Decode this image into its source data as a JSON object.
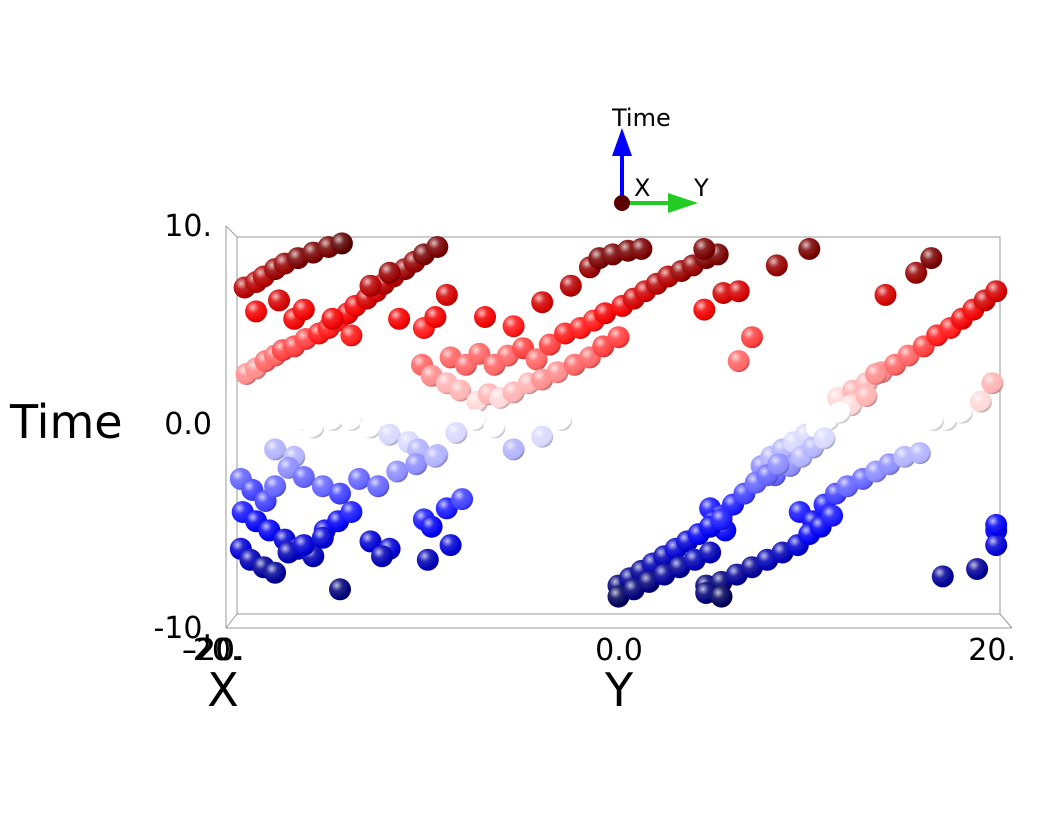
{
  "chart_data": {
    "type": "scatter",
    "title": "",
    "xlabel": "X",
    "ylabel": "Y",
    "zlabel": "Time",
    "x_ticks": [
      "-20.",
      "20."
    ],
    "y_ticks": [
      "-20.",
      "0.0",
      "20."
    ],
    "z_ticks": [
      "-10.",
      "0.0",
      "10."
    ],
    "ylim": [
      -20,
      20
    ],
    "zlim": [
      -10,
      10
    ],
    "color_scale": {
      "low": "#00005a",
      "mid": "#ffffff",
      "high": "#5a0000"
    },
    "orientation": {
      "vertical": "Time",
      "horizontal": "Y",
      "depth": "X"
    },
    "series": [
      {
        "points": [
          [
            -19.6,
            7.2
          ],
          [
            -19.0,
            7.5
          ],
          [
            -18.6,
            7.8
          ],
          [
            -18.0,
            8.2
          ],
          [
            -17.5,
            8.5
          ],
          [
            -16.8,
            8.8
          ],
          [
            -16.0,
            9.1
          ],
          [
            -15.2,
            9.4
          ],
          [
            -14.5,
            9.6
          ],
          [
            -19.5,
            2.5
          ],
          [
            -19.0,
            2.8
          ],
          [
            -18.5,
            3.2
          ],
          [
            -18.0,
            3.5
          ],
          [
            -17.6,
            3.8
          ],
          [
            -17.0,
            4.0
          ],
          [
            -16.4,
            4.4
          ],
          [
            -15.7,
            4.7
          ],
          [
            -15.2,
            5.0
          ],
          [
            -14.7,
            5.4
          ],
          [
            -14.2,
            5.8
          ],
          [
            -13.8,
            6.2
          ],
          [
            -13.2,
            6.6
          ],
          [
            -12.7,
            7.0
          ],
          [
            -12.3,
            7.4
          ],
          [
            -11.8,
            7.8
          ],
          [
            -11.2,
            8.2
          ],
          [
            -10.7,
            8.6
          ],
          [
            -10.2,
            9.0
          ],
          [
            -9.5,
            9.4
          ],
          [
            -19.0,
            5.9
          ],
          [
            -17.8,
            6.5
          ],
          [
            -17.0,
            5.5
          ],
          [
            -16.5,
            6.0
          ],
          [
            -15.0,
            5.5
          ],
          [
            -14.0,
            4.6
          ],
          [
            -13.0,
            7.3
          ],
          [
            -12.0,
            8.0
          ],
          [
            -11.5,
            5.5
          ],
          [
            -9.0,
            6.8
          ],
          [
            -7.0,
            5.6
          ],
          [
            -5.5,
            5.1
          ],
          [
            -4.0,
            6.4
          ],
          [
            -2.5,
            7.3
          ],
          [
            -1.5,
            8.3
          ],
          [
            -10.2,
            5.0
          ],
          [
            -9.6,
            5.6
          ],
          [
            -8.8,
            3.4
          ],
          [
            -8.0,
            3.0
          ],
          [
            -7.3,
            3.6
          ],
          [
            -6.5,
            3.0
          ],
          [
            -5.8,
            3.5
          ],
          [
            -5.0,
            3.9
          ],
          [
            -4.3,
            3.3
          ],
          [
            -3.6,
            4.1
          ],
          [
            -2.8,
            4.7
          ],
          [
            -2.0,
            5.0
          ],
          [
            -1.3,
            5.4
          ],
          [
            -0.7,
            5.8
          ],
          [
            0.2,
            6.2
          ],
          [
            0.8,
            6.6
          ],
          [
            1.4,
            7.0
          ],
          [
            2.0,
            7.4
          ],
          [
            2.6,
            7.8
          ],
          [
            3.3,
            8.1
          ],
          [
            3.9,
            8.4
          ],
          [
            4.6,
            8.8
          ],
          [
            5.2,
            9.0
          ],
          [
            -10.3,
            3.0
          ],
          [
            -9.8,
            2.4
          ],
          [
            -9.0,
            2.0
          ],
          [
            -8.3,
            1.6
          ],
          [
            -7.4,
            1.0
          ],
          [
            -6.8,
            1.4
          ],
          [
            -6.2,
            1.2
          ],
          [
            -5.5,
            1.5
          ],
          [
            -4.7,
            2.0
          ],
          [
            -4.0,
            2.2
          ],
          [
            -3.2,
            2.6
          ],
          [
            -2.3,
            3.0
          ],
          [
            -1.5,
            3.4
          ],
          [
            -0.8,
            4.0
          ],
          [
            0.0,
            4.5
          ],
          [
            -1.0,
            8.8
          ],
          [
            -0.3,
            9.0
          ],
          [
            0.5,
            9.2
          ],
          [
            1.2,
            9.3
          ],
          [
            4.5,
            9.3
          ],
          [
            4.5,
            6.0
          ],
          [
            5.5,
            6.9
          ],
          [
            6.3,
            7.0
          ],
          [
            6.3,
            3.2
          ],
          [
            7.0,
            4.5
          ],
          [
            8.3,
            8.4
          ],
          [
            10.0,
            9.3
          ],
          [
            -18.0,
            -1.6
          ],
          [
            -17.0,
            -2.0
          ],
          [
            -16.5,
            0.0
          ],
          [
            -16.0,
            -0.4
          ],
          [
            -15.0,
            0.0
          ],
          [
            -14.0,
            0.0
          ],
          [
            -13.0,
            -0.4
          ],
          [
            -12.0,
            -0.8
          ],
          [
            -11.0,
            -1.2
          ],
          [
            -10.5,
            -1.6
          ],
          [
            -9.5,
            -1.9
          ],
          [
            -8.5,
            -0.7
          ],
          [
            -7.5,
            0.0
          ],
          [
            -6.5,
            -0.4
          ],
          [
            -5.5,
            -1.6
          ],
          [
            -4.0,
            -0.9
          ],
          [
            -3.0,
            0.0
          ],
          [
            -19.8,
            -3.2
          ],
          [
            -19.2,
            -3.8
          ],
          [
            -18.5,
            -4.4
          ],
          [
            -18.0,
            -3.6
          ],
          [
            -17.3,
            -2.6
          ],
          [
            -16.5,
            -3.1
          ],
          [
            -15.5,
            -3.6
          ],
          [
            -14.6,
            -4.0
          ],
          [
            -13.6,
            -3.2
          ],
          [
            -12.6,
            -3.6
          ],
          [
            -11.6,
            -2.8
          ],
          [
            -10.6,
            -2.4
          ],
          [
            -9.6,
            -2.0
          ],
          [
            -19.7,
            -5.0
          ],
          [
            -19.0,
            -5.5
          ],
          [
            -18.3,
            -6.0
          ],
          [
            -17.5,
            -6.5
          ],
          [
            -16.8,
            -7.0
          ],
          [
            -16.0,
            -7.4
          ],
          [
            -15.4,
            -6.0
          ],
          [
            -14.7,
            -5.5
          ],
          [
            -14.0,
            -5.0
          ],
          [
            -13.0,
            -6.6
          ],
          [
            -12.0,
            -7.0
          ],
          [
            -10.2,
            -5.4
          ],
          [
            -9.8,
            -5.8
          ],
          [
            -9.0,
            -4.8
          ],
          [
            -8.2,
            -4.3
          ],
          [
            -19.8,
            -7.0
          ],
          [
            -19.3,
            -7.6
          ],
          [
            -18.6,
            -8.0
          ],
          [
            -18.0,
            -8.3
          ],
          [
            -17.3,
            -7.2
          ],
          [
            -16.5,
            -6.8
          ],
          [
            -15.5,
            -6.4
          ],
          [
            -14.6,
            -9.2
          ],
          [
            -12.4,
            -7.4
          ],
          [
            -10.0,
            -7.6
          ],
          [
            -8.8,
            -6.8
          ],
          [
            11.5,
            1.2
          ],
          [
            12.3,
            1.6
          ],
          [
            13.0,
            2.0
          ],
          [
            13.8,
            2.6
          ],
          [
            14.5,
            3.0
          ],
          [
            15.2,
            3.5
          ],
          [
            16.0,
            4.0
          ],
          [
            16.7,
            4.6
          ],
          [
            17.4,
            5.0
          ],
          [
            18.0,
            5.5
          ],
          [
            18.6,
            6.0
          ],
          [
            19.2,
            6.5
          ],
          [
            19.8,
            7.0
          ],
          [
            12.2,
            0.8
          ],
          [
            13.0,
            1.3
          ],
          [
            13.5,
            2.5
          ],
          [
            15.6,
            8.0
          ],
          [
            16.4,
            8.8
          ],
          [
            17.2,
            0.0
          ],
          [
            18.0,
            0.4
          ],
          [
            19.0,
            1.0
          ],
          [
            19.6,
            2.0
          ],
          [
            16.5,
            0.0
          ],
          [
            14.0,
            6.8
          ],
          [
            7.5,
            -2.5
          ],
          [
            8.0,
            -2.0
          ],
          [
            8.6,
            -1.6
          ],
          [
            9.2,
            -1.2
          ],
          [
            9.8,
            -0.8
          ],
          [
            10.4,
            -0.4
          ],
          [
            11.0,
            0.0
          ],
          [
            11.6,
            0.4
          ],
          [
            8.2,
            -3.0
          ],
          [
            9.0,
            -2.5
          ],
          [
            9.6,
            -2.0
          ],
          [
            10.2,
            -1.5
          ],
          [
            10.8,
            -1.0
          ],
          [
            4.8,
            -4.8
          ],
          [
            5.4,
            -5.2
          ],
          [
            6.0,
            -4.6
          ],
          [
            6.6,
            -4.0
          ],
          [
            7.2,
            -3.4
          ],
          [
            7.8,
            -3.0
          ],
          [
            8.4,
            -2.4
          ],
          [
            5.0,
            -5.5
          ],
          [
            5.6,
            -6.0
          ],
          [
            9.5,
            -5.0
          ],
          [
            10.2,
            -5.5
          ],
          [
            10.8,
            -4.6
          ],
          [
            11.4,
            -4.0
          ],
          [
            12.0,
            -3.6
          ],
          [
            12.8,
            -3.2
          ],
          [
            13.5,
            -2.8
          ],
          [
            14.2,
            -2.4
          ],
          [
            15.0,
            -2.0
          ],
          [
            15.8,
            -1.8
          ],
          [
            0.0,
            -9.0
          ],
          [
            0.6,
            -8.6
          ],
          [
            1.2,
            -8.2
          ],
          [
            1.8,
            -7.8
          ],
          [
            2.4,
            -7.4
          ],
          [
            3.0,
            -7.0
          ],
          [
            3.6,
            -6.6
          ],
          [
            4.2,
            -6.2
          ],
          [
            4.8,
            -5.8
          ],
          [
            5.4,
            -5.4
          ],
          [
            0.0,
            -9.6
          ],
          [
            0.8,
            -9.2
          ],
          [
            1.6,
            -8.8
          ],
          [
            2.4,
            -8.4
          ],
          [
            3.2,
            -8.0
          ],
          [
            4.0,
            -7.6
          ],
          [
            4.8,
            -7.2
          ],
          [
            4.6,
            -9.0
          ],
          [
            5.4,
            -8.8
          ],
          [
            6.2,
            -8.4
          ],
          [
            7.0,
            -8.0
          ],
          [
            7.8,
            -7.6
          ],
          [
            8.6,
            -7.2
          ],
          [
            9.4,
            -6.8
          ],
          [
            10.0,
            -6.2
          ],
          [
            10.6,
            -5.8
          ],
          [
            11.2,
            -5.2
          ],
          [
            4.6,
            -9.4
          ],
          [
            5.4,
            -9.6
          ],
          [
            17.0,
            -8.5
          ],
          [
            18.8,
            -8.1
          ],
          [
            19.8,
            -6.0
          ],
          [
            19.8,
            -6.8
          ],
          [
            19.8,
            -5.7
          ]
        ]
      }
    ]
  },
  "triad": {
    "time_label": "Time",
    "x_label": "X",
    "y_label": "Y"
  },
  "colors": {
    "axis_time": "#0000ff",
    "axis_y": "#22cc22",
    "frame": "#999999",
    "origin": "#5a0000"
  }
}
